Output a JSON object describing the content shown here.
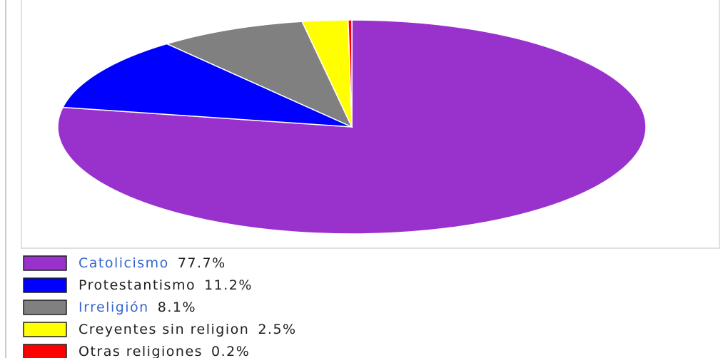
{
  "chart_data": {
    "type": "pie",
    "categories": [
      "Catolicismo",
      "Protestantismo",
      "Irreligión",
      "Creyentes sin religion",
      "Otras religiones"
    ],
    "values": [
      77.7,
      11.2,
      8.1,
      2.5,
      0.2
    ],
    "value_labels": [
      "77.7%",
      "11.2%",
      "8.1%",
      "2.5%",
      "0.2%"
    ],
    "colors": [
      "#9932cc",
      "#0000ff",
      "#808080",
      "#ffff00",
      "#ff0000"
    ]
  }
}
